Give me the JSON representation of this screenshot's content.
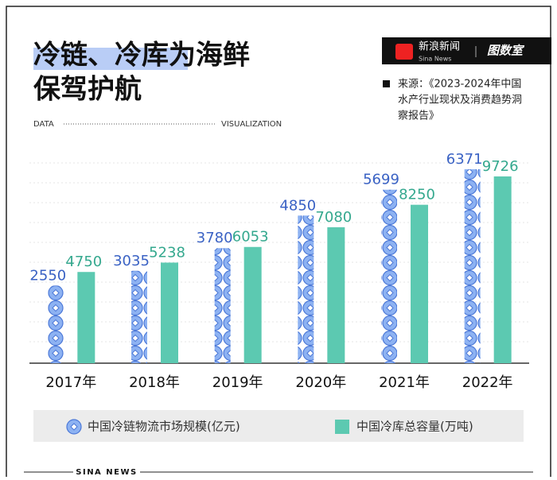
{
  "header": {
    "title_line1": "冷链、冷库为海鲜",
    "title_line2": "保驾护航",
    "data_label": "DATA",
    "visualization_label": "VISUALIZATION",
    "brand": "新浪新闻",
    "brand_en": "Sina News",
    "logo": "图数室",
    "source": [
      "来源：《2023-2024年中国",
      "水产行业现状及消费趋势洞",
      "察报告》"
    ]
  },
  "footer": {
    "text": "SINA NEWS"
  },
  "chart_data": {
    "type": "bar",
    "categories": [
      "2017年",
      "2018年",
      "2019年",
      "2020年",
      "2021年",
      "2022年"
    ],
    "series": [
      {
        "name": "中国冷链物流市场规模(亿元)",
        "color": "#7fa8ef",
        "values": [
          2550,
          3035,
          3780,
          4850,
          5699,
          6371
        ]
      },
      {
        "name": "中国冷库总容量(万吨)",
        "color": "#5cc9b1",
        "values": [
          4750,
          5238,
          6053,
          7080,
          8250,
          9726
        ]
      }
    ]
  }
}
